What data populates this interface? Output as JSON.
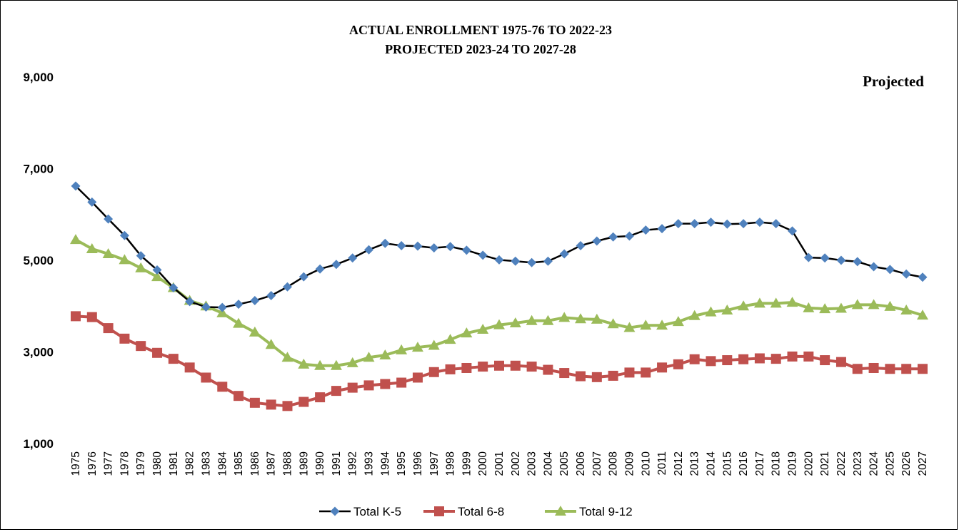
{
  "chart_data": {
    "type": "line",
    "title": "ACTUAL ENROLLMENT 1975-76 TO 2022-23",
    "subtitle": "PROJECTED 2023-24 TO 2027-28",
    "annotation": "Projected",
    "xlabel": "",
    "ylabel": "",
    "ylim": [
      1000,
      9000
    ],
    "yticks": [
      1000,
      3000,
      5000,
      7000,
      9000
    ],
    "ytick_labels": [
      "1,000",
      "3,000",
      "5,000",
      "7,000",
      "9,000"
    ],
    "grid": false,
    "legend_position": "bottom",
    "categories": [
      "1975",
      "1976",
      "1977",
      "1978",
      "1979",
      "1980",
      "1981",
      "1982",
      "1983",
      "1984",
      "1985",
      "1986",
      "1987",
      "1988",
      "1989",
      "1990",
      "1991",
      "1992",
      "1993",
      "1994",
      "1995",
      "1996",
      "1997",
      "1998",
      "1999",
      "2000",
      "2001",
      "2002",
      "2003",
      "2004",
      "2005",
      "2006",
      "2007",
      "2008",
      "2009",
      "2010",
      "2011",
      "2012",
      "2013",
      "2014",
      "2015",
      "2016",
      "2017",
      "2018",
      "2019",
      "2020",
      "2021",
      "2022",
      "2023",
      "2024",
      "2025",
      "2026",
      "2027"
    ],
    "series": [
      {
        "name": "Total K-5",
        "color": "#4f81bd",
        "line_color": "#000000",
        "marker": "diamond",
        "values": [
          6620,
          6270,
          5900,
          5540,
          5100,
          4790,
          4400,
          4100,
          3980,
          3970,
          4040,
          4120,
          4230,
          4420,
          4640,
          4810,
          4910,
          5050,
          5230,
          5370,
          5320,
          5310,
          5270,
          5300,
          5220,
          5110,
          5010,
          4980,
          4950,
          4980,
          5140,
          5320,
          5420,
          5510,
          5530,
          5660,
          5690,
          5800,
          5800,
          5830,
          5790,
          5800,
          5830,
          5800,
          5640,
          5060,
          5050,
          5000,
          4970,
          4860,
          4800,
          4700,
          4630
        ]
      },
      {
        "name": "Total 6-8",
        "color": "#c0504d",
        "line_color": "#c0504d",
        "marker": "square",
        "values": [
          3780,
          3760,
          3520,
          3290,
          3130,
          2980,
          2850,
          2660,
          2440,
          2240,
          2040,
          1890,
          1850,
          1820,
          1910,
          2010,
          2150,
          2220,
          2270,
          2300,
          2330,
          2440,
          2560,
          2620,
          2650,
          2680,
          2700,
          2700,
          2680,
          2610,
          2540,
          2470,
          2450,
          2480,
          2550,
          2550,
          2660,
          2730,
          2840,
          2800,
          2820,
          2840,
          2860,
          2850,
          2900,
          2900,
          2820,
          2780,
          2630,
          2650,
          2630,
          2630,
          2630
        ]
      },
      {
        "name": "Total 9-12",
        "color": "#9bbb59",
        "line_color": "#9bbb59",
        "marker": "triangle",
        "values": [
          5450,
          5250,
          5140,
          5010,
          4830,
          4640,
          4400,
          4120,
          4000,
          3850,
          3620,
          3430,
          3160,
          2880,
          2730,
          2700,
          2700,
          2760,
          2880,
          2930,
          3040,
          3100,
          3140,
          3270,
          3410,
          3490,
          3590,
          3630,
          3680,
          3680,
          3750,
          3720,
          3710,
          3610,
          3530,
          3580,
          3580,
          3660,
          3790,
          3870,
          3910,
          4000,
          4060,
          4060,
          4080,
          3960,
          3940,
          3950,
          4030,
          4030,
          3990,
          3910,
          3800
        ]
      }
    ]
  }
}
